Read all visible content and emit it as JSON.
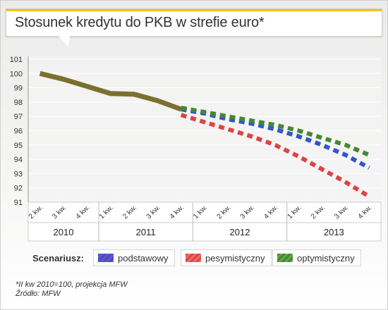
{
  "title": "Stosunek kredytu do PKB w strefie euro*",
  "legend_label": "Scenariusz:",
  "footnote_lines": [
    "*II kw 2010=100, projekcja MFW",
    "Źródło: MFW"
  ],
  "colors": {
    "accent": "#f2c400",
    "podstawowy": "#3355cc",
    "pesymistyczny": "#dd4444",
    "optymistyczny": "#448833"
  },
  "chart_data": {
    "type": "line",
    "title": "Stosunek kredytu do PKB w strefie euro*",
    "ylim": [
      91,
      101
    ],
    "yticks": [
      91,
      92,
      93,
      94,
      95,
      96,
      97,
      98,
      99,
      100,
      101
    ],
    "quarter_labels": [
      "2 kw.",
      "3 kw.",
      "4 kw.",
      "1 kw.",
      "2 kw.",
      "3 kw.",
      "4 kw.",
      "1 kw.",
      "2 kw.",
      "3 kw.",
      "4 kw.",
      "1 kw.",
      "2 kw.",
      "3 kw.",
      "4 kw."
    ],
    "years": [
      {
        "label": "2010",
        "start": 0,
        "end": 2
      },
      {
        "label": "2011",
        "start": 3,
        "end": 6
      },
      {
        "label": "2012",
        "start": 7,
        "end": 10
      },
      {
        "label": "2013",
        "start": 11,
        "end": 14
      }
    ],
    "historical": {
      "x": [
        0,
        1,
        2,
        3,
        4,
        5,
        6
      ],
      "values": [
        100,
        99.6,
        99.1,
        98.6,
        98.55,
        98.1,
        97.5
      ]
    },
    "series": [
      {
        "name": "podstawowy",
        "x": [
          6,
          7,
          8,
          9,
          10,
          11,
          12,
          13,
          14
        ],
        "values": [
          97.5,
          97.2,
          96.8,
          96.5,
          96.1,
          95.6,
          95.0,
          94.3,
          93.4
        ]
      },
      {
        "name": "pesymistyczny",
        "x": [
          6,
          7,
          8,
          9,
          10,
          11,
          12,
          13,
          14
        ],
        "values": [
          97.1,
          96.6,
          96.1,
          95.6,
          95.0,
          94.2,
          93.3,
          92.4,
          91.4
        ]
      },
      {
        "name": "optymistyczny",
        "x": [
          6,
          7,
          8,
          9,
          10,
          11,
          12,
          13,
          14
        ],
        "values": [
          97.6,
          97.3,
          97.0,
          96.7,
          96.4,
          96.0,
          95.5,
          95.0,
          94.3
        ]
      }
    ],
    "grid": true,
    "legend_position": "bottom"
  }
}
